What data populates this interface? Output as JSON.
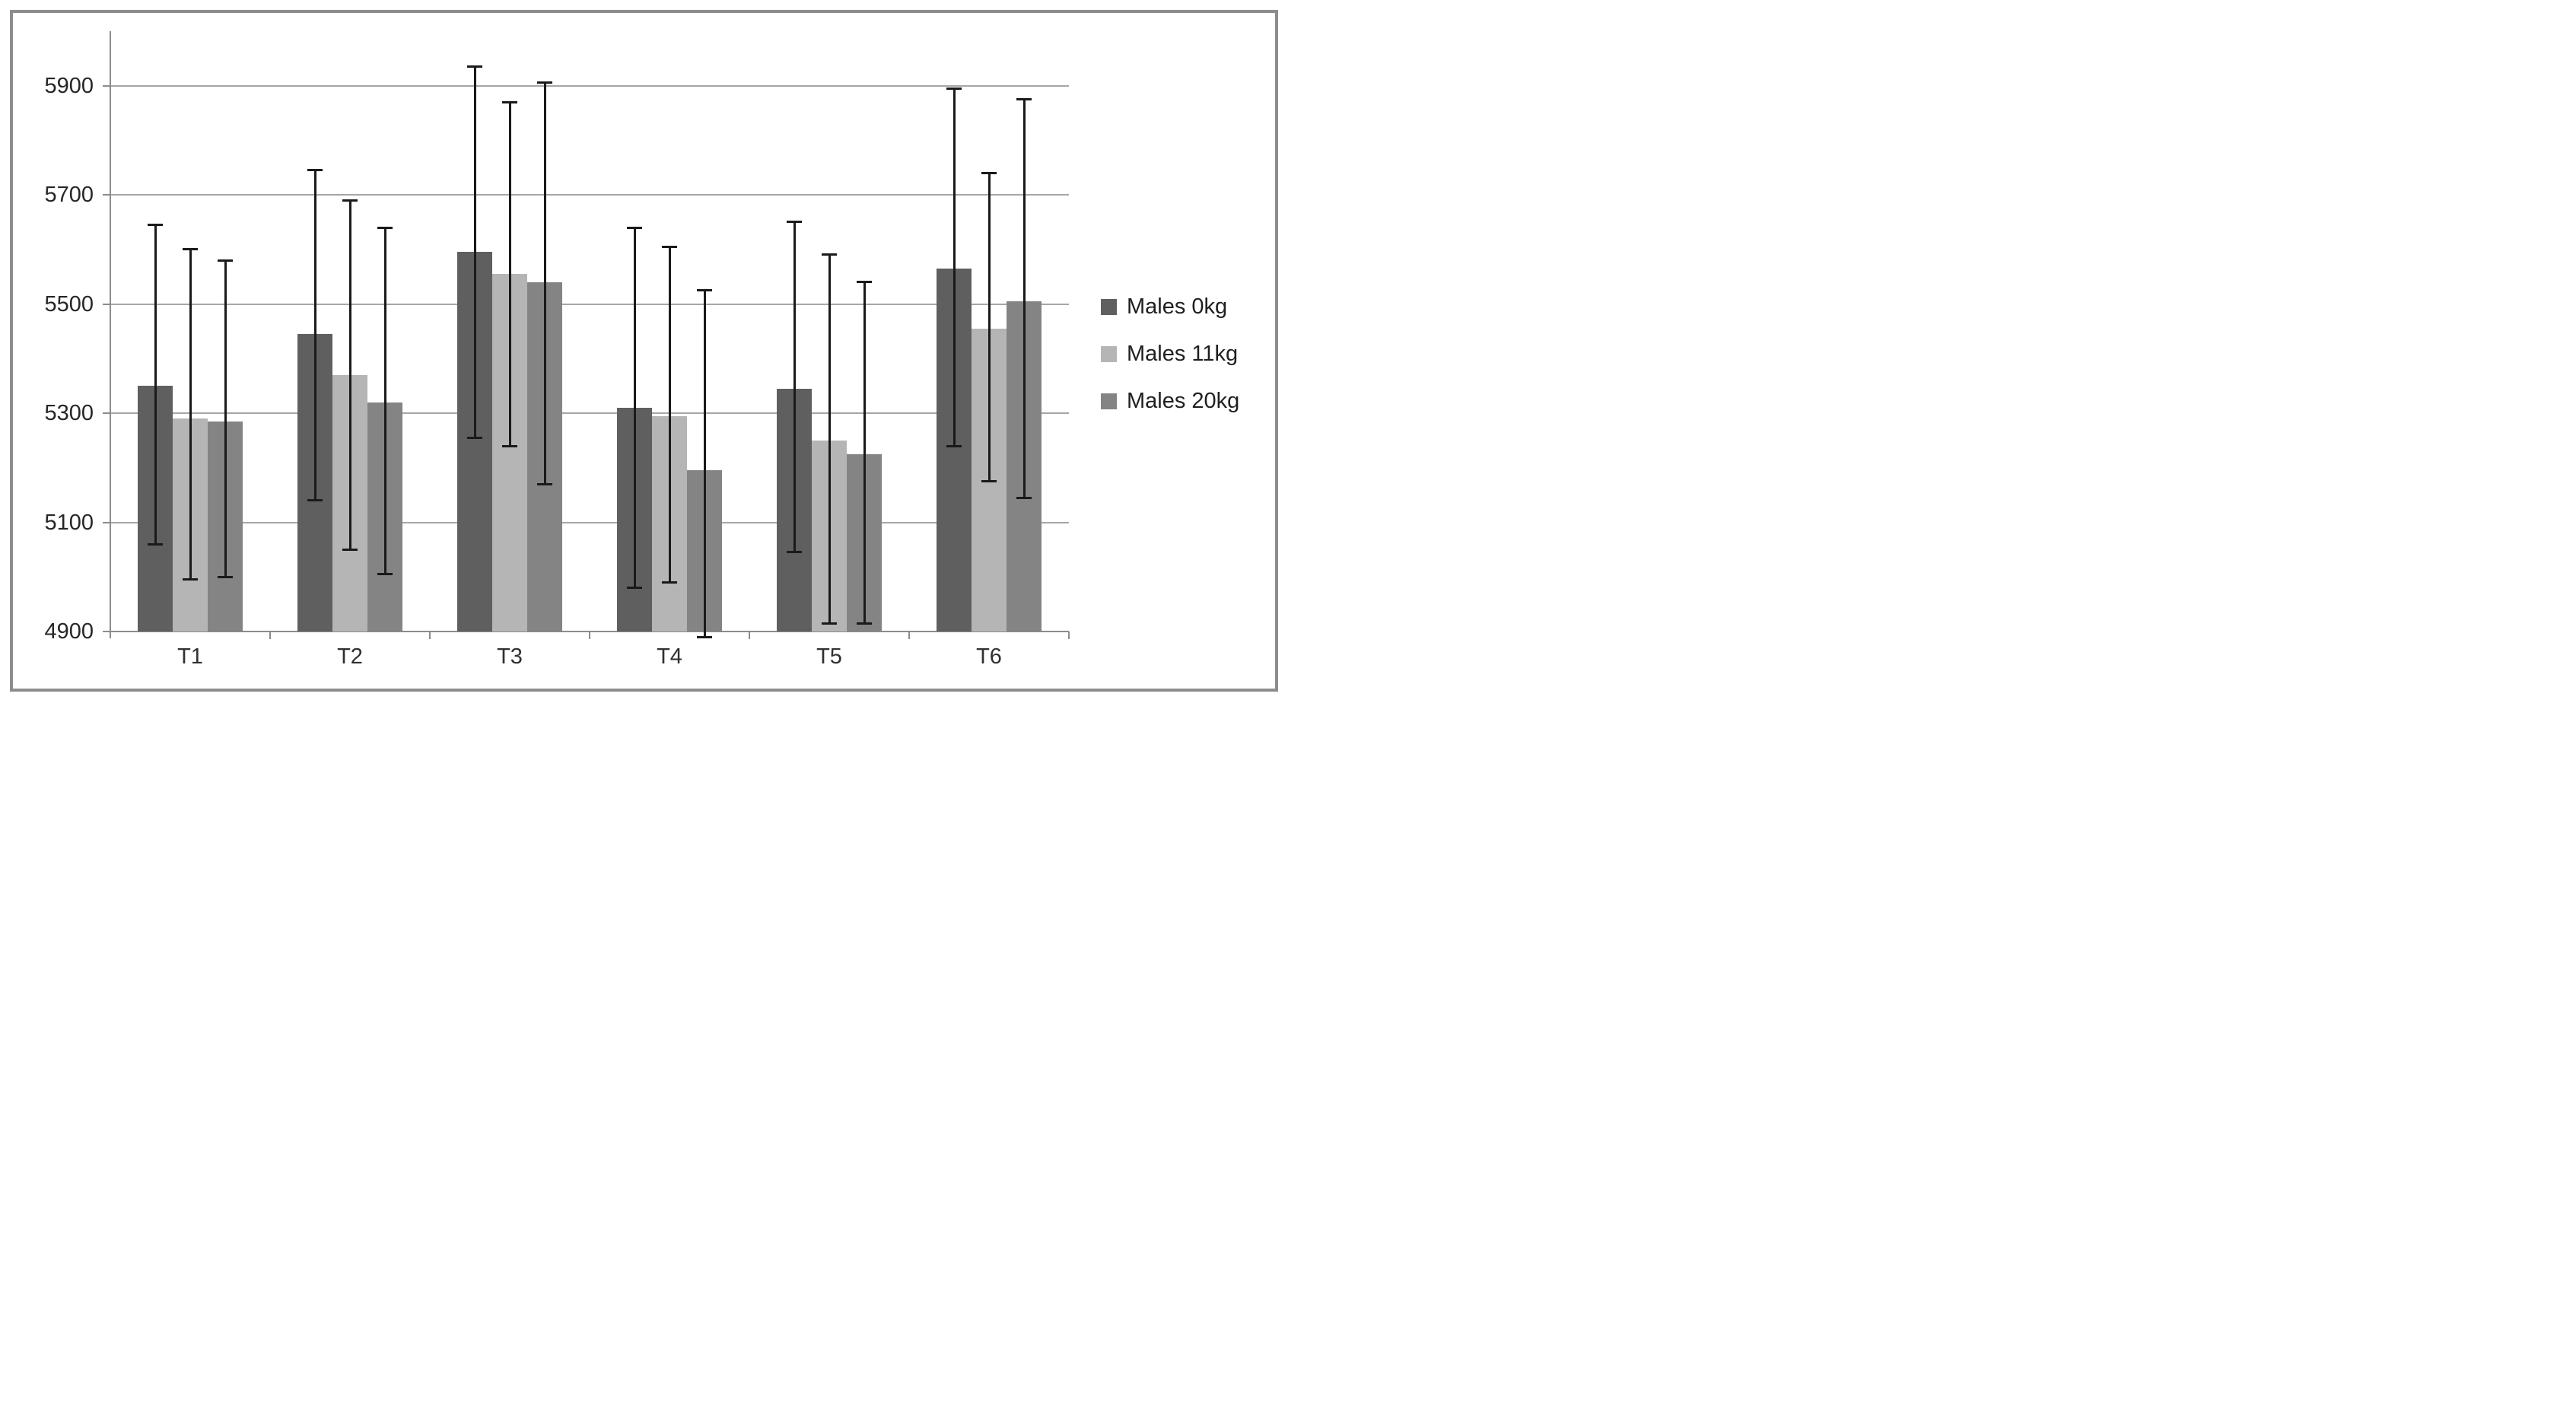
{
  "figure": {
    "background": "#ffffff",
    "border_color": "#8c8c8c"
  },
  "chart_data": {
    "type": "bar",
    "title": "",
    "xlabel": "",
    "ylabel": "",
    "categories": [
      "T1",
      "T2",
      "T3",
      "T4",
      "T5",
      "T6"
    ],
    "series": [
      {
        "name": "Males 0kg",
        "color": "#5f5f5f",
        "values": [
          5350,
          5445,
          5595,
          5310,
          5345,
          5565
        ],
        "error_low": [
          5060,
          5140,
          5255,
          4980,
          5045,
          5240
        ],
        "error_high": [
          5645,
          5745,
          5935,
          5640,
          5650,
          5895
        ]
      },
      {
        "name": "Males 11kg",
        "color": "#b5b5b5",
        "values": [
          5290,
          5370,
          5555,
          5295,
          5250,
          5455
        ],
        "error_low": [
          4995,
          5050,
          5240,
          4990,
          4915,
          5175
        ],
        "error_high": [
          5600,
          5690,
          5870,
          5605,
          5590,
          5740
        ]
      },
      {
        "name": "Males 20kg",
        "color": "#848484",
        "values": [
          5285,
          5320,
          5540,
          5195,
          5225,
          5505
        ],
        "error_low": [
          5000,
          5005,
          5170,
          4890,
          4915,
          5145
        ],
        "error_high": [
          5580,
          5640,
          5905,
          5525,
          5540,
          5875
        ]
      }
    ],
    "y_axis": {
      "min": 4900,
      "max": 6000,
      "tick_step": 200,
      "ticks": [
        4900,
        5100,
        5300,
        5500,
        5700,
        5900
      ],
      "tick_labels": [
        "4900",
        "5100",
        "5300",
        "5500",
        "5700",
        "5900"
      ]
    },
    "grid": true,
    "error_bars": true,
    "legend_position": "right",
    "colors": {
      "gridline": "#a6a6a6",
      "axis": "#8c8c8c",
      "error_bar": "#1a1a1a",
      "tick_text": "#262626"
    }
  }
}
